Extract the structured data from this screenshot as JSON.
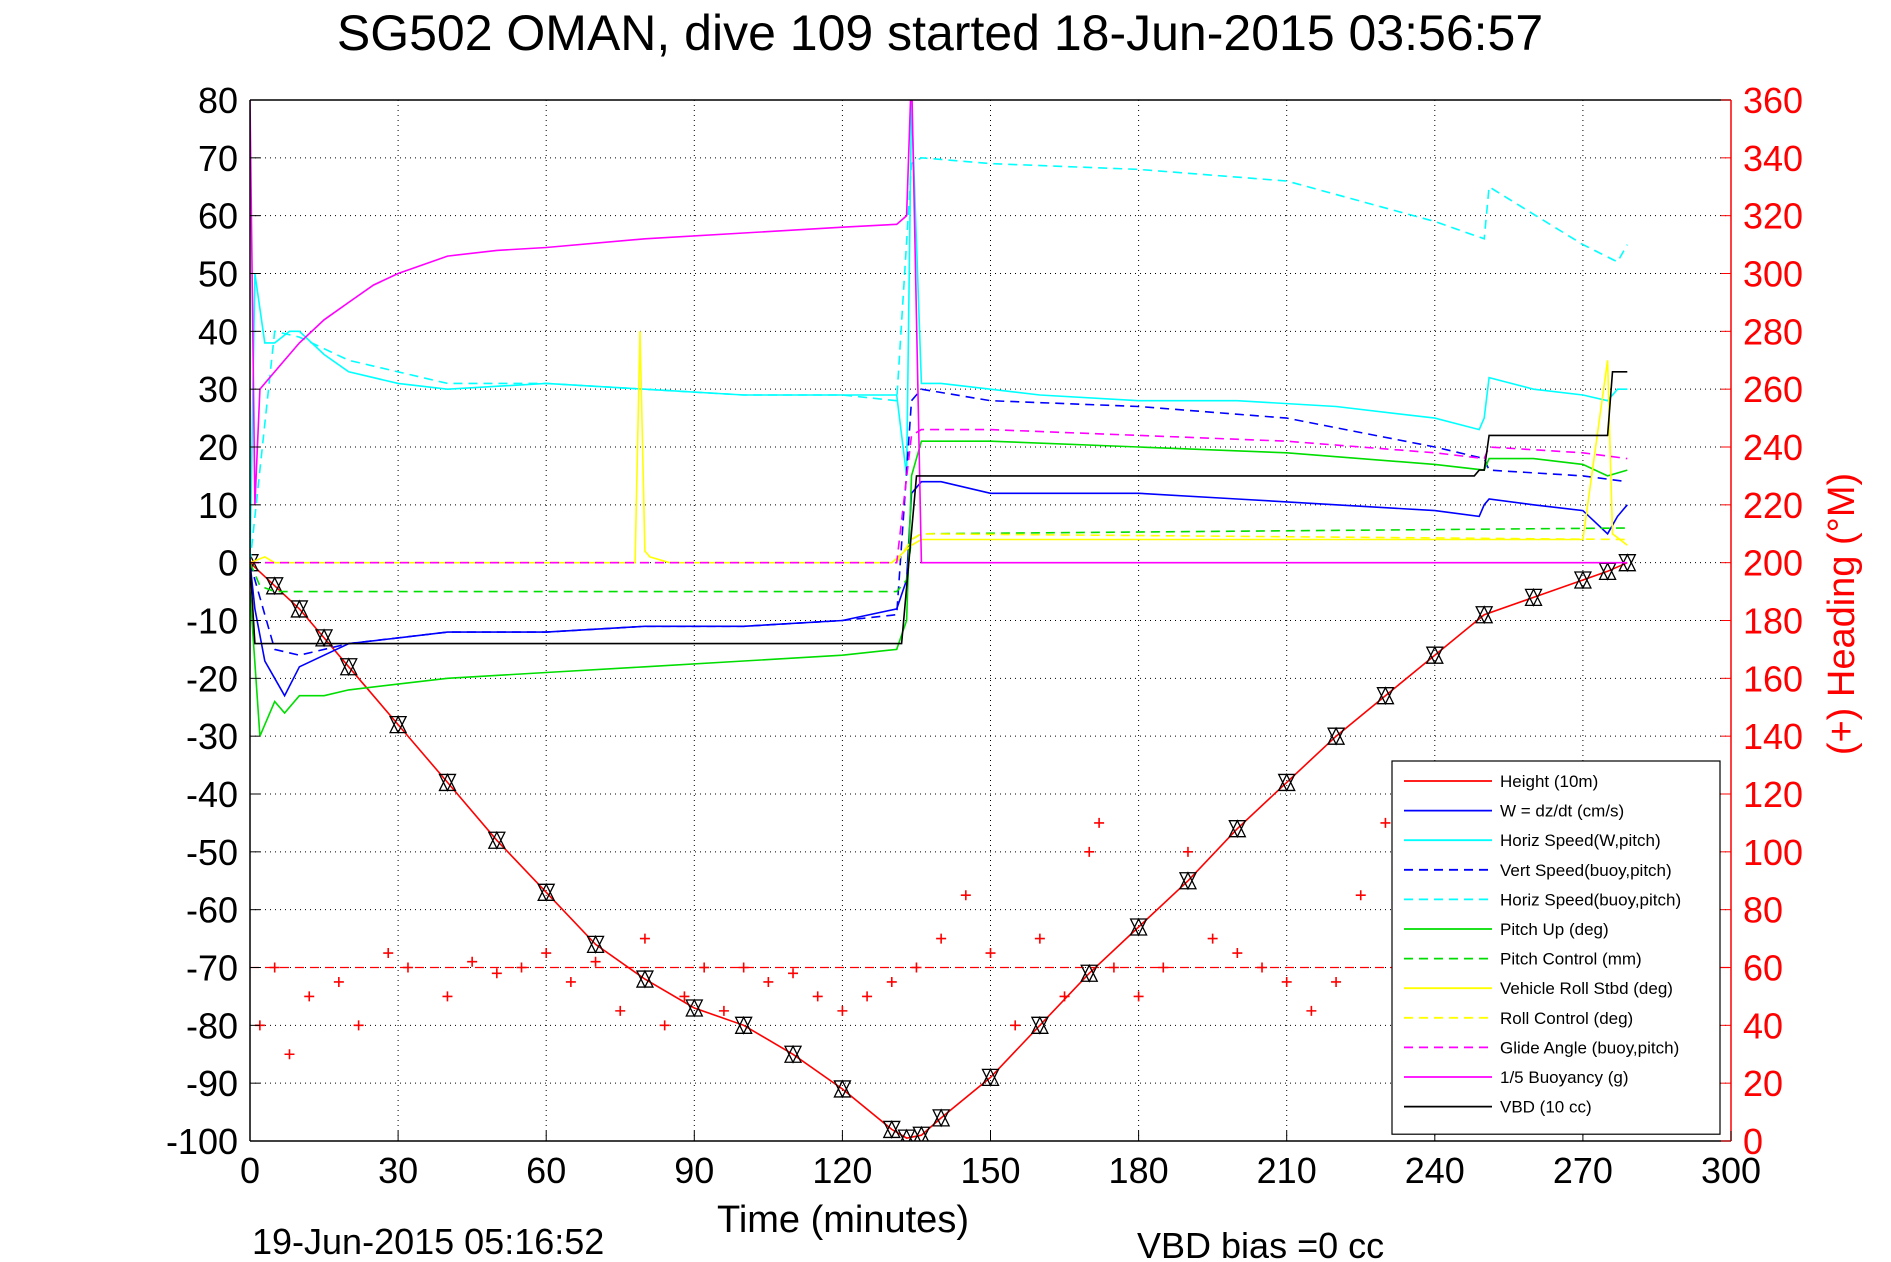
{
  "chart_data": {
    "type": "line",
    "title": "SG502 OMAN, dive 109 started 18-Jun-2015 03:56:57",
    "xlabel": "Time (minutes)",
    "ylabel_right": "(+) Heading (°M)",
    "footer_left": "19-Jun-2015 05:16:52",
    "footer_right": "VBD bias =0 cc",
    "xlim": [
      0,
      300
    ],
    "ylim": [
      -100,
      80
    ],
    "ylim_right": [
      0,
      360
    ],
    "xticks": [
      0,
      30,
      60,
      90,
      120,
      150,
      180,
      210,
      240,
      270,
      300
    ],
    "yticks": [
      -100,
      -90,
      -80,
      -70,
      -60,
      -50,
      -40,
      -30,
      -20,
      -10,
      0,
      10,
      20,
      30,
      40,
      50,
      60,
      70,
      80
    ],
    "yticks_right": [
      0,
      20,
      40,
      60,
      80,
      100,
      120,
      140,
      160,
      180,
      200,
      220,
      240,
      260,
      280,
      300,
      320,
      340,
      360
    ],
    "grid": true,
    "legend_position": "lower-right",
    "colors": {
      "right_axis": "#ff0000"
    },
    "series": [
      {
        "name": "Height (10m)",
        "color": "#ff0000",
        "dash": "solid",
        "marker": "triangle",
        "x": [
          0,
          5,
          10,
          15,
          20,
          30,
          40,
          50,
          60,
          70,
          80,
          90,
          100,
          110,
          120,
          130,
          133,
          136,
          140,
          150,
          160,
          170,
          180,
          190,
          200,
          210,
          220,
          230,
          240,
          250,
          260,
          270,
          275,
          279
        ],
        "y": [
          0,
          -4,
          -8,
          -13,
          -18,
          -28,
          -38,
          -48,
          -57,
          -66,
          -72,
          -77,
          -80,
          -85,
          -91,
          -98,
          -99.5,
          -99,
          -96,
          -89,
          -80,
          -71,
          -63,
          -55,
          -46,
          -38,
          -30,
          -23,
          -16,
          -9,
          -6,
          -3,
          -1.5,
          0
        ]
      },
      {
        "name": "W = dz/dt (cm/s)",
        "color": "#0000ff",
        "dash": "solid",
        "x": [
          0,
          1,
          3,
          5,
          7,
          10,
          15,
          20,
          30,
          40,
          60,
          80,
          100,
          120,
          131,
          133,
          134,
          136,
          140,
          150,
          160,
          180,
          200,
          220,
          240,
          249,
          250,
          251,
          260,
          270,
          275,
          277,
          279
        ],
        "y": [
          0,
          -8,
          -17,
          -20,
          -23,
          -18,
          -16,
          -14,
          -13,
          -12,
          -12,
          -11,
          -11,
          -10,
          -8,
          -3,
          12,
          14,
          14,
          12,
          12,
          12,
          11,
          10,
          9,
          8,
          10,
          11,
          10,
          9,
          5,
          8,
          10
        ]
      },
      {
        "name": "Horiz Speed(W,pitch)",
        "color": "#00ffff",
        "dash": "solid",
        "x": [
          0,
          1,
          3,
          5,
          8,
          10,
          15,
          20,
          30,
          40,
          60,
          80,
          100,
          120,
          131,
          133,
          134,
          136,
          140,
          150,
          160,
          180,
          200,
          220,
          240,
          249,
          250,
          251,
          260,
          270,
          275,
          277,
          279
        ],
        "y": [
          0,
          50,
          38,
          38,
          40,
          40,
          36,
          33,
          31,
          30,
          31,
          30,
          29,
          29,
          29,
          15,
          80,
          31,
          31,
          30,
          29,
          28,
          28,
          27,
          25,
          23,
          25,
          32,
          30,
          29,
          28,
          30,
          30
        ]
      },
      {
        "name": "Vert Speed(buoy,pitch)",
        "color": "#0000ff",
        "dash": "dashed",
        "x": [
          0,
          5,
          10,
          20,
          40,
          60,
          80,
          100,
          120,
          131,
          134,
          136,
          150,
          180,
          210,
          240,
          250,
          251,
          270,
          279
        ],
        "y": [
          0,
          -15,
          -16,
          -14,
          -12,
          -12,
          -11,
          -11,
          -10,
          -9,
          28,
          30,
          28,
          27,
          25,
          20,
          18,
          16,
          15,
          14
        ]
      },
      {
        "name": "Horiz Speed(buoy,pitch)",
        "color": "#00ffff",
        "dash": "dashed",
        "x": [
          0,
          5,
          10,
          20,
          40,
          60,
          80,
          100,
          120,
          131,
          134,
          136,
          150,
          180,
          210,
          240,
          250,
          251,
          270,
          277,
          279
        ],
        "y": [
          0,
          40,
          39,
          35,
          31,
          31,
          30,
          29,
          29,
          28,
          69,
          70,
          69,
          68,
          66,
          59,
          56,
          65,
          55,
          52,
          55
        ]
      },
      {
        "name": "Pitch Up (deg)",
        "color": "#00dd00",
        "dash": "solid",
        "x": [
          0,
          2,
          5,
          7,
          10,
          15,
          20,
          30,
          40,
          60,
          80,
          100,
          120,
          131,
          133,
          134,
          136,
          140,
          150,
          180,
          210,
          240,
          250,
          251,
          260,
          270,
          275,
          279
        ],
        "y": [
          -5,
          -30,
          -24,
          -26,
          -23,
          -23,
          -22,
          -21,
          -20,
          -19,
          -18,
          -17,
          -16,
          -15,
          -10,
          15,
          21,
          21,
          21,
          20,
          19,
          17,
          16,
          18,
          18,
          17,
          15,
          16
        ]
      },
      {
        "name": "Pitch Control (mm)",
        "color": "#00dd00",
        "dash": "dashed",
        "x": [
          0,
          2,
          5,
          10,
          131,
          133,
          134,
          136,
          279
        ],
        "y": [
          0,
          -4,
          -5,
          -5,
          -5,
          -3,
          4,
          5,
          6
        ]
      },
      {
        "name": "Vehicle Roll Stbd (deg)",
        "color": "#ffff00",
        "dash": "solid",
        "x": [
          0,
          3,
          5,
          10,
          78,
          79,
          80,
          81,
          85,
          130,
          134,
          136,
          150,
          200,
          250,
          270,
          275,
          276,
          279
        ],
        "y": [
          0,
          1,
          0,
          0,
          0,
          40,
          2,
          1,
          0,
          0,
          3,
          4,
          4,
          4,
          4,
          4,
          35,
          5,
          3
        ]
      },
      {
        "name": "Roll Control (deg)",
        "color": "#ffff00",
        "dash": "dashed",
        "x": [
          0,
          5,
          10,
          131,
          134,
          136,
          279
        ],
        "y": [
          0,
          0,
          0,
          0,
          4,
          5,
          4
        ]
      },
      {
        "name": "Glide Angle (buoy,pitch)",
        "color": "#ff00ff",
        "dash": "dashed",
        "x": [
          0,
          131,
          134,
          136,
          150,
          180,
          210,
          240,
          250,
          251,
          270,
          279
        ],
        "y": [
          0,
          0,
          22,
          23,
          23,
          22,
          21,
          19,
          18,
          20,
          19,
          18
        ]
      },
      {
        "name": "1/5 Buoyancy (g)",
        "color": "#ff00ff",
        "dash": "solid",
        "x": [
          0,
          1,
          2,
          3,
          6,
          10,
          15,
          20,
          25,
          30,
          40,
          50,
          60,
          80,
          100,
          120,
          131,
          133,
          134,
          136,
          279
        ],
        "y": [
          80,
          10,
          30,
          31,
          34,
          38,
          42,
          45,
          48,
          50,
          53,
          54,
          54.5,
          56,
          57,
          58,
          58.5,
          60,
          85,
          0,
          0
        ]
      },
      {
        "name": "VBD (10 cc)",
        "color": "#000000",
        "dash": "solid",
        "x": [
          0,
          1,
          2,
          131,
          132,
          135,
          136,
          248,
          249,
          250,
          251,
          274,
          275,
          276,
          279
        ],
        "y": [
          0,
          -14,
          -14,
          -14,
          -14,
          15,
          15,
          15,
          16,
          16,
          22,
          22,
          22,
          33,
          33
        ]
      },
      {
        "name": "Heading",
        "color": "#ff0000",
        "dash": "none",
        "marker": "plus",
        "axis": "right",
        "x": [
          0,
          2,
          5,
          8,
          12,
          18,
          22,
          28,
          32,
          40,
          45,
          50,
          55,
          60,
          65,
          70,
          75,
          80,
          84,
          88,
          92,
          96,
          100,
          105,
          110,
          115,
          120,
          125,
          130,
          135,
          140,
          145,
          150,
          155,
          160,
          165,
          170,
          172,
          175,
          180,
          185,
          190,
          195,
          200,
          205,
          210,
          215,
          220,
          225,
          230,
          235,
          240
        ],
        "y": [
          200,
          40,
          60,
          30,
          50,
          55,
          40,
          65,
          60,
          50,
          62,
          58,
          60,
          65,
          55,
          62,
          45,
          70,
          40,
          50,
          60,
          45,
          60,
          55,
          58,
          50,
          45,
          50,
          55,
          60,
          70,
          85,
          65,
          40,
          70,
          50,
          100,
          110,
          60,
          50,
          60,
          100,
          70,
          65,
          60,
          55,
          45,
          55,
          85,
          110,
          60,
          65
        ]
      }
    ],
    "reference_lines": [
      {
        "y_right": 60,
        "color": "#ff0000",
        "dash": "dashed"
      }
    ]
  }
}
